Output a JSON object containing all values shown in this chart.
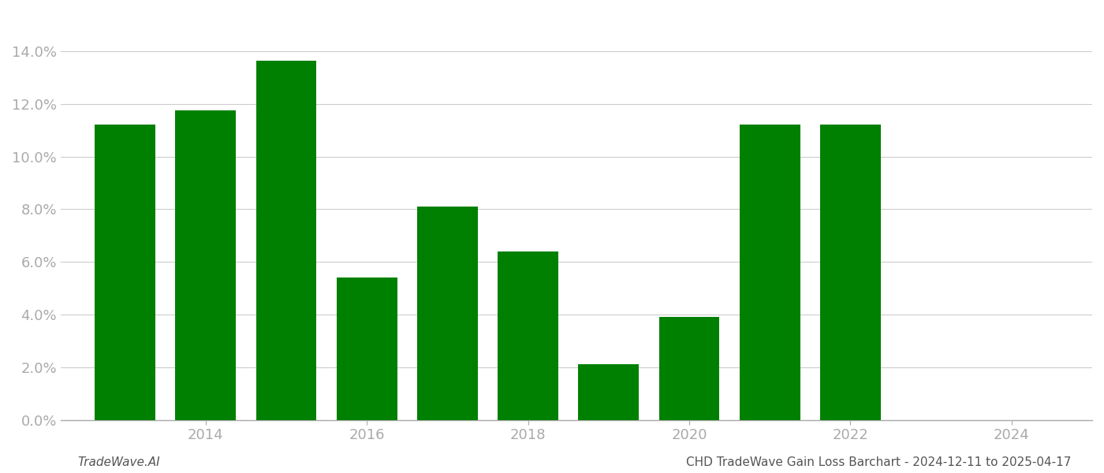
{
  "years": [
    2013,
    2014,
    2015,
    2016,
    2017,
    2018,
    2019,
    2020,
    2021,
    2022,
    2023
  ],
  "values": [
    0.1122,
    0.1175,
    0.1365,
    0.054,
    0.081,
    0.064,
    0.021,
    0.039,
    0.1122,
    0.1122,
    0.0
  ],
  "bar_color": "#008000",
  "background_color": "#ffffff",
  "tick_color": "#aaaaaa",
  "grid_color": "#cccccc",
  "footer_left": "TradeWave.AI",
  "footer_right": "CHD TradeWave Gain Loss Barchart - 2024-12-11 to 2025-04-17",
  "ylim": [
    0,
    0.155
  ],
  "yticks": [
    0.0,
    0.02,
    0.04,
    0.06,
    0.08,
    0.1,
    0.12,
    0.14
  ],
  "xtick_positions": [
    2014,
    2016,
    2018,
    2020,
    2022,
    2024
  ],
  "xtick_labels": [
    "2014",
    "2016",
    "2018",
    "2020",
    "2022",
    "2024"
  ],
  "xlim": [
    2012.2,
    2025.0
  ],
  "bar_width": 0.75
}
